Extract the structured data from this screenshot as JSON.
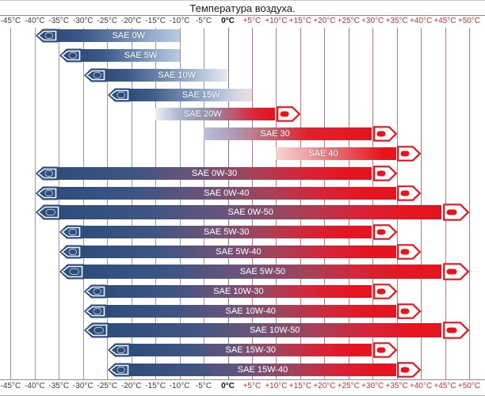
{
  "title": "Температура воздуха.",
  "chart_data": {
    "type": "bar",
    "orientation": "horizontal-range",
    "title": "Температура воздуха.",
    "x_unit": "°C",
    "xlim": [
      -45,
      50
    ],
    "x_tick_step": 5,
    "grid": true,
    "x_ticks": [
      {
        "t": -45,
        "label": "-45°C"
      },
      {
        "t": -40,
        "label": "-40°C"
      },
      {
        "t": -35,
        "label": "-35°C"
      },
      {
        "t": -30,
        "label": "-30°C"
      },
      {
        "t": -25,
        "label": "-25°C"
      },
      {
        "t": -20,
        "label": "-20°C"
      },
      {
        "t": -15,
        "label": "-15°C"
      },
      {
        "t": -10,
        "label": "-10°C"
      },
      {
        "t": -5,
        "label": "-5°C"
      },
      {
        "t": 0,
        "label": "0°C"
      },
      {
        "t": 5,
        "label": "+5°C"
      },
      {
        "t": 10,
        "label": "+10°C"
      },
      {
        "t": 15,
        "label": "+15°C"
      },
      {
        "t": 20,
        "label": "+20°C"
      },
      {
        "t": 25,
        "label": "+25°C"
      },
      {
        "t": 30,
        "label": "+30°C"
      },
      {
        "t": 35,
        "label": "+35°C"
      },
      {
        "t": 40,
        "label": "+40°C"
      },
      {
        "t": 45,
        "label": "+45°C"
      },
      {
        "t": 50,
        "label": "+50°C"
      }
    ],
    "rows": [
      {
        "label": "SAE 0W",
        "t_min": -40,
        "t_max": -10,
        "style": "winter",
        "arrows": "left"
      },
      {
        "label": "SAE 5W",
        "t_min": -35,
        "t_max": -10,
        "style": "winter",
        "arrows": "left"
      },
      {
        "label": "SAE 10W",
        "t_min": -30,
        "t_max": 0,
        "style": "winter-light",
        "arrows": "left"
      },
      {
        "label": "SAE 15W",
        "t_min": -25,
        "t_max": 5,
        "style": "winter-pink",
        "arrows": "left"
      },
      {
        "label": "SAE 20W",
        "t_min": -15,
        "t_max": 15,
        "style": "cool-red",
        "arrows": "right"
      },
      {
        "label": "SAE 30",
        "t_min": -5,
        "t_max": 35,
        "style": "summer-blue",
        "arrows": "right"
      },
      {
        "label": "SAE 40",
        "t_min": 10,
        "t_max": 40,
        "style": "summer-pink",
        "arrows": "right"
      },
      {
        "label": "SAE 0W-30",
        "t_min": -40,
        "t_max": 35,
        "style": "multi",
        "arrows": "both"
      },
      {
        "label": "SAE 0W-40",
        "t_min": -40,
        "t_max": 40,
        "style": "multi",
        "arrows": "both"
      },
      {
        "label": "SAE 0W-50",
        "t_min": -40,
        "t_max": 50,
        "style": "multi",
        "arrows": "both",
        "big": true
      },
      {
        "label": "SAE 5W-30",
        "t_min": -35,
        "t_max": 35,
        "style": "multi",
        "arrows": "both"
      },
      {
        "label": "SAE 5W-40",
        "t_min": -35,
        "t_max": 40,
        "style": "multi",
        "arrows": "both"
      },
      {
        "label": "SAE 5W-50",
        "t_min": -35,
        "t_max": 50,
        "style": "multi",
        "arrows": "both",
        "big": true
      },
      {
        "label": "SAE 10W-30",
        "t_min": -30,
        "t_max": 35,
        "style": "multi",
        "arrows": "both"
      },
      {
        "label": "SAE 10W-40",
        "t_min": -30,
        "t_max": 40,
        "style": "multi",
        "arrows": "both"
      },
      {
        "label": "SAE 10W-50",
        "t_min": -30,
        "t_max": 50,
        "style": "multi",
        "arrows": "both",
        "big": true
      },
      {
        "label": "SAE 15W-30",
        "t_min": -25,
        "t_max": 35,
        "style": "multi",
        "arrows": "both"
      },
      {
        "label": "SAE 15W-40",
        "t_min": -25,
        "t_max": 40,
        "style": "multi",
        "arrows": "both"
      }
    ],
    "colors": {
      "cold_blue": "#2e4d7c",
      "hot_red": "#e5141f",
      "grid_negative": "#9a9a9a",
      "grid_positive": "#c47878",
      "tick_negative": "#3c3c3c",
      "tick_positive": "#c13434",
      "tick_zero": "#111111"
    }
  }
}
